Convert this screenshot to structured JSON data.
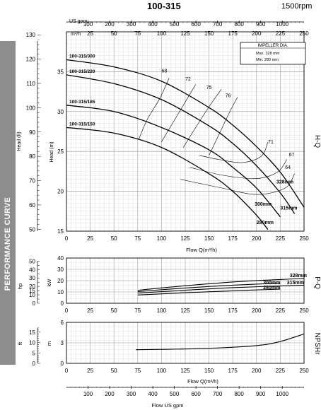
{
  "header": {
    "model": "100-315",
    "speed": "1500rpm"
  },
  "sidebar": {
    "label": "PERFORMANCE CURVE"
  },
  "impeller_box": {
    "title": "IMPELLER DIA.",
    "max": "Max.   328  mm",
    "min": "Min.    280  mm"
  },
  "chart_data": [
    {
      "type": "line",
      "name": "H-Q",
      "xlabel": "Flow  Q(m³/h)",
      "xlim": [
        0,
        250
      ],
      "x_ticks": [
        0,
        25,
        50,
        75,
        100,
        125,
        150,
        175,
        200,
        225,
        250
      ],
      "top_axis_label": "US gpm",
      "top_axis_ticks": [
        100,
        200,
        300,
        400,
        500,
        600,
        700,
        800,
        900,
        1000
      ],
      "top_axis_unit": "m³/h",
      "ylabel_left": "Head (ft)",
      "ylabel_right": "Head (m)",
      "ylim": [
        15,
        40
      ],
      "y_ticks_m": [
        15,
        20,
        25,
        30,
        35
      ],
      "y_ticks_ft": [
        50,
        60,
        70,
        80,
        90,
        100,
        110,
        120,
        130
      ],
      "side_label": "H-Q",
      "series": [
        {
          "name": "100-315/300",
          "x": [
            0,
            50,
            100,
            150,
            175,
            200,
            225,
            250
          ],
          "y": [
            36.5,
            35.6,
            33.8,
            30.5,
            28.3,
            25.6,
            22.4,
            18.0
          ]
        },
        {
          "name": "100-315/220",
          "x": [
            0,
            50,
            100,
            150,
            175,
            200,
            225,
            240
          ],
          "y": [
            34.6,
            33.5,
            31.5,
            28.2,
            26.0,
            23.2,
            19.8,
            17.2
          ]
        },
        {
          "name": "100-315/185",
          "x": [
            0,
            50,
            100,
            150,
            175,
            200,
            225
          ],
          "y": [
            30.8,
            30.0,
            28.0,
            25.2,
            23.0,
            20.4,
            16.8
          ]
        },
        {
          "name": "100-315/150",
          "x": [
            0,
            50,
            100,
            150,
            175,
            200,
            212
          ],
          "y": [
            28.0,
            27.3,
            25.5,
            22.2,
            20.0,
            17.0,
            15.2
          ]
        }
      ],
      "efficiency_labels": [
        "68",
        "72",
        "75",
        "76",
        "71",
        "67",
        "64"
      ],
      "diameter_labels": [
        "328mm",
        "315mm",
        "300mm",
        "280mm"
      ]
    },
    {
      "type": "line",
      "name": "P-Q",
      "ylabel_left": "hp",
      "ylabel_right": "kW",
      "ylim": [
        0,
        40
      ],
      "y_ticks_kw": [
        0,
        10,
        20,
        30,
        40
      ],
      "y_ticks_hp": [
        0,
        10,
        15,
        20,
        30,
        40,
        50
      ],
      "side_label": "P-Q",
      "series": [
        {
          "name": "328mm",
          "x": [
            75,
            125,
            175,
            225,
            250
          ],
          "y": [
            11.5,
            15.5,
            18.8,
            21.0,
            21.8
          ]
        },
        {
          "name": "300mm",
          "x": [
            75,
            125,
            175,
            225
          ],
          "y": [
            10.3,
            13.5,
            16.0,
            17.8
          ]
        },
        {
          "name": "315mm",
          "x": [
            75,
            125,
            175,
            250
          ],
          "y": [
            9.0,
            11.5,
            13.8,
            16.0
          ]
        },
        {
          "name": "280mm",
          "x": [
            75,
            125,
            175,
            225
          ],
          "y": [
            7.3,
            9.3,
            11.0,
            12.5
          ]
        }
      ]
    },
    {
      "type": "line",
      "name": "NPSHr",
      "ylabel_left": "ft",
      "ylabel_right": "m",
      "xlabel": "Flow  Q(m³/h)",
      "bottom_axis_label": "Flow  US gpm",
      "bottom_axis_ticks": [
        100,
        200,
        300,
        400,
        500,
        600,
        700,
        800,
        900,
        1000
      ],
      "ylim": [
        0,
        6
      ],
      "y_ticks_m": [
        0,
        3,
        6
      ],
      "y_ticks_ft": [
        0,
        5,
        10,
        15
      ],
      "side_label": "NPSHr",
      "series": [
        {
          "name": "NPSHr",
          "x": [
            73,
            100,
            150,
            200,
            225,
            250
          ],
          "y": [
            2.0,
            2.05,
            2.2,
            2.6,
            3.2,
            4.3
          ]
        }
      ]
    }
  ]
}
